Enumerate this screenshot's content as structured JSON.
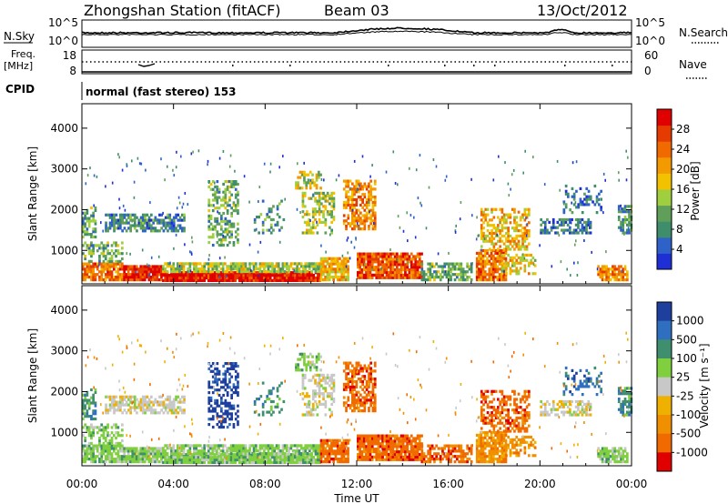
{
  "header": {
    "station": "Zhongshan Station (fitACF)",
    "beam": "Beam 03",
    "date": "13/Oct/2012"
  },
  "colors": {
    "power_scale": [
      "#1f2fd6",
      "#2f62c9",
      "#3f8e6b",
      "#5f9f5a",
      "#9fcf3f",
      "#f2c200",
      "#f39a00",
      "#f06a00",
      "#e53a00",
      "#e00000"
    ],
    "velocity_scale": [
      "#1f3f9f",
      "#2f6fbf",
      "#3f8f6f",
      "#7fcf3f",
      "#c8c8c8",
      "#f0b000",
      "#f08f00",
      "#f06a00",
      "#e00000"
    ],
    "trace": "#000000"
  },
  "sky_panel": {
    "left_label": "N.Sky",
    "right_label": "N.Search",
    "left_ticks": [
      "10^5",
      "10^0"
    ],
    "right_ticks": [
      "10^5",
      "10^0"
    ]
  },
  "freq_panel": {
    "left_label_1": "Freq.",
    "left_label_2": "[MHz]",
    "right_label": "Nave",
    "left_ticks": [
      "18",
      "8"
    ],
    "right_ticks": [
      "60",
      "0"
    ]
  },
  "cpid": {
    "label": "CPID",
    "mode": "normal (fast stereo) 153"
  },
  "chart_data": [
    {
      "type": "heatmap",
      "name": "Power",
      "ylabel": "Slant Range [km]",
      "xlabel": "",
      "ylim": [
        180,
        4600
      ],
      "yticks": [
        "1000",
        "2000",
        "3000",
        "4000"
      ],
      "ytick_values": [
        1000,
        2000,
        3000,
        4000
      ],
      "colorbar_label": "Power [dB]",
      "colorbar_ticks": [
        "4",
        "8",
        "12",
        "16",
        "20",
        "24",
        "28"
      ],
      "colorbar_values": [
        4,
        8,
        12,
        16,
        20,
        24,
        28
      ],
      "colorbar_range": [
        0,
        32
      ]
    },
    {
      "type": "heatmap",
      "name": "Velocity",
      "ylabel": "Slant Range [km]",
      "xlabel": "Time UT",
      "ylim": [
        180,
        4600
      ],
      "yticks": [
        "1000",
        "2000",
        "3000",
        "4000"
      ],
      "ytick_values": [
        1000,
        2000,
        3000,
        4000
      ],
      "xticks": [
        "00:00",
        "04:00",
        "08:00",
        "12:00",
        "16:00",
        "20:00",
        "00:00"
      ],
      "xtick_hours": [
        0,
        4,
        8,
        12,
        16,
        20,
        24
      ],
      "colorbar_label": "Velocity [m s⁻¹]",
      "colorbar_ticks": [
        "1000",
        "500",
        "100",
        "25",
        "-25",
        "-100",
        "-500",
        "-1000"
      ]
    }
  ]
}
